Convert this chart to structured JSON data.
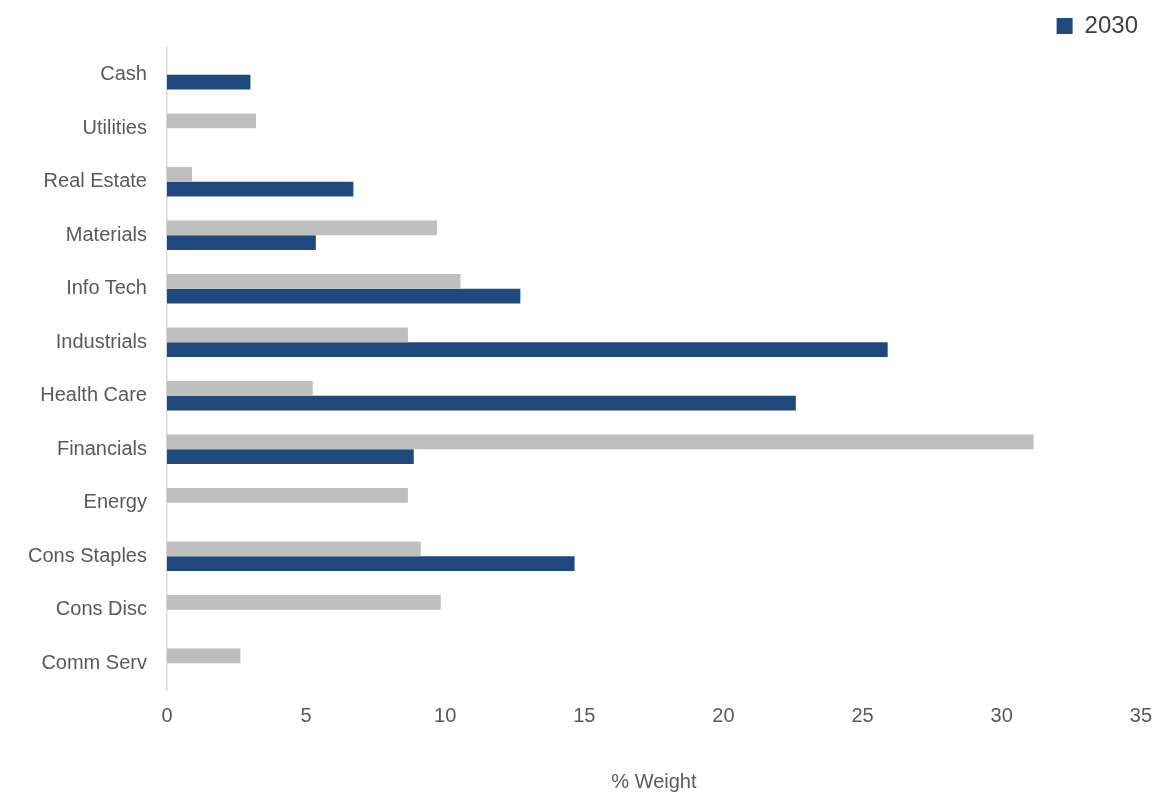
{
  "chart_data": {
    "type": "bar",
    "orientation": "horizontal",
    "xlabel": "% Weight",
    "categories": [
      "Cash",
      "Utilities",
      "Real Estate",
      "Materials",
      "Info Tech",
      "Industrials",
      "Health Care",
      "Financials",
      "Energy",
      "Cons Staples",
      "Cons Disc",
      "Comm Serv"
    ],
    "series": [
      {
        "color": "#bfbfbf",
        "values": [
          null,
          3.2,
          0.9,
          9.7,
          10.55,
          8.66,
          5.24,
          31.15,
          8.66,
          9.12,
          9.84,
          2.64
        ]
      },
      {
        "name": "2030",
        "color": "#1f497d",
        "values": [
          3.0,
          null,
          6.7,
          5.35,
          12.7,
          25.9,
          22.6,
          8.87,
          null,
          14.65,
          null,
          null
        ]
      }
    ],
    "xlim": [
      0,
      35
    ],
    "xticks": [
      0,
      5,
      10,
      15,
      20,
      25,
      30,
      35
    ],
    "grid": false,
    "legend": "top right"
  }
}
